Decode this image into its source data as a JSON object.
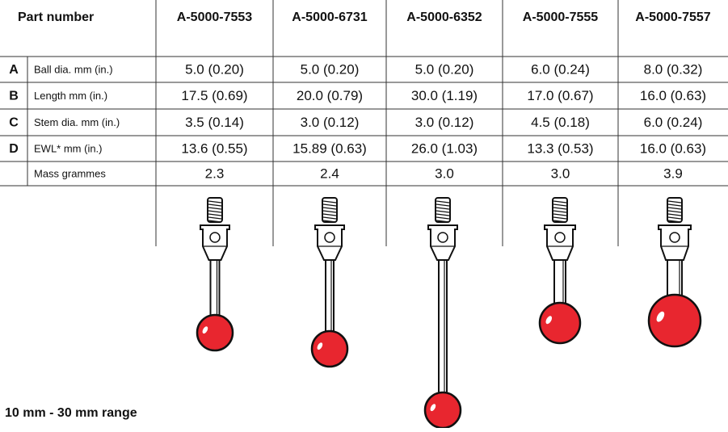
{
  "header": {
    "title": "Part number"
  },
  "columns": [
    "A-5000-7553",
    "A-5000-6731",
    "A-5000-6352",
    "A-5000-7555",
    "A-5000-7557"
  ],
  "rows": [
    {
      "label": "A",
      "description": "Ball dia. mm (in.)",
      "values": [
        "5.0 (0.20)",
        "5.0 (0.20)",
        "5.0 (0.20)",
        "6.0 (0.24)",
        "8.0 (0.32)"
      ]
    },
    {
      "label": "B",
      "description": "Length mm (in.)",
      "values": [
        "17.5 (0.69)",
        "20.0 (0.79)",
        "30.0 (1.19)",
        "17.0 (0.67)",
        "16.0 (0.63)"
      ]
    },
    {
      "label": "C",
      "description": "Stem dia. mm (in.)",
      "values": [
        "3.5 (0.14)",
        "3.0 (0.12)",
        "3.0 (0.12)",
        "4.5 (0.18)",
        "6.0 (0.24)"
      ]
    },
    {
      "label": "D",
      "description": "EWL* mm (in.)",
      "values": [
        "13.6 (0.55)",
        "15.89 (0.63)",
        "26.0 (1.03)",
        "13.3 (0.53)",
        "16.0 (0.63)"
      ]
    },
    {
      "description": "Mass grammes",
      "values": [
        "2.3",
        "2.4",
        "3.0",
        "3.0",
        "3.9"
      ]
    }
  ],
  "footer": "10 mm - 30 mm range"
}
